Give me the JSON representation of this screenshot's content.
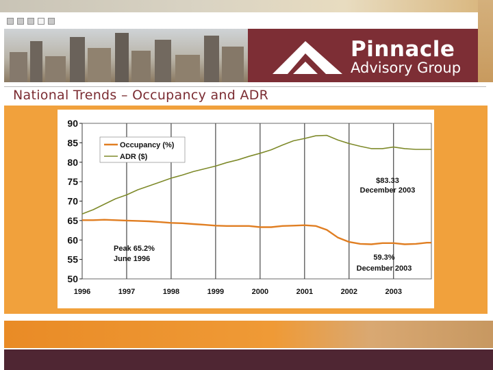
{
  "brand": {
    "name_line1": "Pinnacle",
    "name_line2": "Advisory Group"
  },
  "slide": {
    "title": "National Trends – Occupancy and ADR"
  },
  "colors": {
    "banner": "#7d2e35",
    "accent_orange": "#f1a13c",
    "title_text": "#7b2c32",
    "occupancy_line": "#e07e22",
    "adr_line": "#7e8a2a",
    "footer": "#4f2633"
  },
  "chart_data": {
    "type": "line",
    "title": "",
    "xlabel": "",
    "ylabel": "",
    "x_ticks": [
      "1996",
      "1997",
      "1998",
      "1999",
      "2000",
      "2001",
      "2002",
      "2003"
    ],
    "xlim": [
      1996.0,
      2003.85
    ],
    "ylim": [
      50,
      90
    ],
    "y_ticks": [
      50,
      55,
      60,
      65,
      70,
      75,
      80,
      85,
      90
    ],
    "grid": "vertical lines at each year",
    "legend": "top-left",
    "series": [
      {
        "name": "Occupancy (%)",
        "color": "#e07e22",
        "points": [
          [
            1996.0,
            65.1
          ],
          [
            1996.25,
            65.1
          ],
          [
            1996.5,
            65.2
          ],
          [
            1996.75,
            65.1
          ],
          [
            1997.0,
            65.0
          ],
          [
            1997.25,
            64.9
          ],
          [
            1997.5,
            64.8
          ],
          [
            1997.75,
            64.6
          ],
          [
            1998.0,
            64.4
          ],
          [
            1998.25,
            64.3
          ],
          [
            1998.5,
            64.1
          ],
          [
            1998.75,
            63.9
          ],
          [
            1999.0,
            63.7
          ],
          [
            1999.25,
            63.6
          ],
          [
            1999.5,
            63.6
          ],
          [
            1999.75,
            63.6
          ],
          [
            2000.0,
            63.3
          ],
          [
            2000.25,
            63.3
          ],
          [
            2000.5,
            63.6
          ],
          [
            2000.75,
            63.7
          ],
          [
            2001.0,
            63.8
          ],
          [
            2001.25,
            63.6
          ],
          [
            2001.5,
            62.6
          ],
          [
            2001.75,
            60.6
          ],
          [
            2002.0,
            59.5
          ],
          [
            2002.25,
            59.0
          ],
          [
            2002.5,
            58.9
          ],
          [
            2002.75,
            59.2
          ],
          [
            2003.0,
            59.2
          ],
          [
            2003.25,
            58.9
          ],
          [
            2003.5,
            59.0
          ],
          [
            2003.75,
            59.3
          ],
          [
            2003.85,
            59.3
          ]
        ]
      },
      {
        "name": "ADR ($)",
        "color": "#7e8a2a",
        "points": [
          [
            1996.0,
            66.7
          ],
          [
            1996.25,
            67.8
          ],
          [
            1996.5,
            69.2
          ],
          [
            1996.75,
            70.6
          ],
          [
            1997.0,
            71.6
          ],
          [
            1997.25,
            72.9
          ],
          [
            1997.5,
            73.9
          ],
          [
            1997.75,
            74.9
          ],
          [
            1998.0,
            75.9
          ],
          [
            1998.25,
            76.7
          ],
          [
            1998.5,
            77.6
          ],
          [
            1998.75,
            78.3
          ],
          [
            1999.0,
            79.0
          ],
          [
            1999.25,
            79.9
          ],
          [
            1999.5,
            80.6
          ],
          [
            1999.75,
            81.5
          ],
          [
            2000.0,
            82.3
          ],
          [
            2000.25,
            83.2
          ],
          [
            2000.5,
            84.4
          ],
          [
            2000.75,
            85.5
          ],
          [
            2001.0,
            86.1
          ],
          [
            2001.25,
            86.8
          ],
          [
            2001.5,
            86.9
          ],
          [
            2001.75,
            85.7
          ],
          [
            2002.0,
            84.8
          ],
          [
            2002.25,
            84.1
          ],
          [
            2002.5,
            83.5
          ],
          [
            2002.75,
            83.5
          ],
          [
            2003.0,
            83.9
          ],
          [
            2003.25,
            83.5
          ],
          [
            2003.5,
            83.3
          ],
          [
            2003.75,
            83.3
          ],
          [
            2003.85,
            83.3
          ]
        ]
      }
    ],
    "annotations": [
      {
        "id": "adr-dec-2003",
        "line1": "$83.33",
        "line2": "December 2003"
      },
      {
        "id": "peak-1996",
        "line1": "Peak 65.2%",
        "line2": "June 1996"
      },
      {
        "id": "occ-dec-2003",
        "line1": "59.3%",
        "line2": "December 2003"
      }
    ]
  }
}
